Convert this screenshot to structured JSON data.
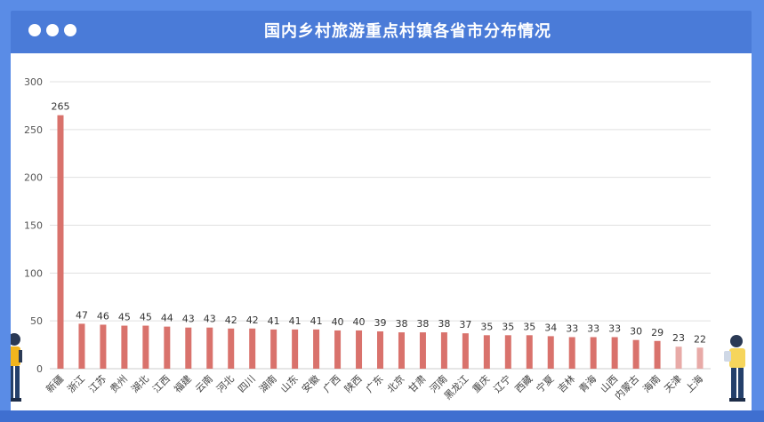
{
  "header": {
    "title": "国内乡村旅游重点村镇各省市分布情况"
  },
  "colors": {
    "frame": "#5a8ce6",
    "header": "#4a7bd8",
    "bar": "#d9726c",
    "bar_light": "#e8aaa7",
    "grid": "#e0e0e0"
  },
  "chart_data": {
    "type": "bar",
    "title": "国内乡村旅游重点村镇各省市分布情况",
    "xlabel": "",
    "ylabel": "",
    "ylim": [
      0,
      300
    ],
    "yticks": [
      0,
      50,
      100,
      150,
      200,
      250,
      300
    ],
    "grid": true,
    "categories": [
      "新疆",
      "浙江",
      "江苏",
      "贵州",
      "湖北",
      "江西",
      "福建",
      "云南",
      "河北",
      "四川",
      "湖南",
      "山东",
      "安徽",
      "广西",
      "陕西",
      "广东",
      "北京",
      "甘肃",
      "河南",
      "黑龙江",
      "重庆",
      "辽宁",
      "西藏",
      "宁夏",
      "吉林",
      "青海",
      "山西",
      "内蒙古",
      "海南",
      "天津",
      "上海"
    ],
    "values": [
      265,
      47,
      46,
      45,
      45,
      44,
      43,
      43,
      42,
      42,
      41,
      41,
      41,
      40,
      40,
      39,
      38,
      38,
      38,
      37,
      35,
      35,
      35,
      34,
      33,
      33,
      33,
      30,
      29,
      23,
      22
    ]
  }
}
